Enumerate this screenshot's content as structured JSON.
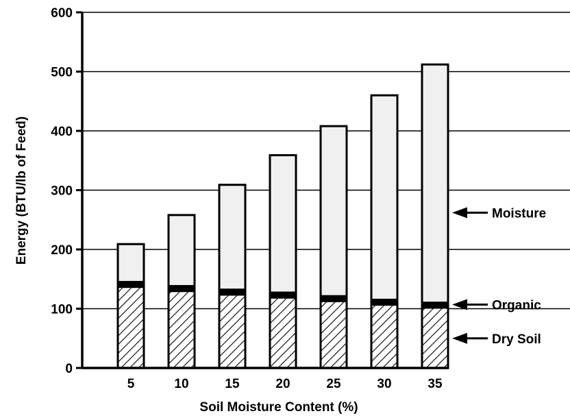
{
  "chart_data": {
    "type": "bar",
    "stacked": true,
    "title": "",
    "xlabel": "Soil Moisture Content (%)",
    "ylabel": "Energy (BTU/lb of Feed)",
    "ylim": [
      0,
      600
    ],
    "yticks": [
      "0",
      "100",
      "200",
      "300",
      "400",
      "500",
      "600"
    ],
    "grid": true,
    "categories": [
      "5",
      "10",
      "15",
      "20",
      "25",
      "30",
      "35"
    ],
    "series": [
      {
        "name": "Dry Soil",
        "values": [
          135,
          128,
          122,
          117,
          111,
          105,
          100
        ],
        "fill": "hatch"
      },
      {
        "name": "Organic",
        "values": [
          12,
          12,
          12,
          12,
          12,
          12,
          12
        ],
        "fill": "#000000"
      },
      {
        "name": "Moisture",
        "values": [
          62,
          118,
          175,
          230,
          285,
          343,
          400
        ],
        "fill": "#f0f0f0"
      }
    ],
    "legend": {
      "placement": "right",
      "style": "arrows",
      "entries": [
        "Moisture",
        "Organic",
        "Dry Soil"
      ]
    }
  }
}
